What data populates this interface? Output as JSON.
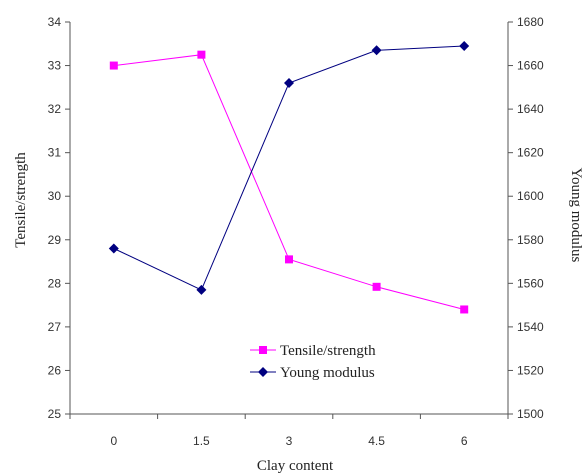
{
  "chart_data": {
    "type": "line",
    "x": [
      "0",
      "1.5",
      "3",
      "4.5",
      "6"
    ],
    "xlabel": "Clay content",
    "ylabel_left": "Tensile/strength",
    "ylabel_right": "Young modulus",
    "y_left": {
      "range": [
        25,
        34
      ],
      "ticks": [
        25,
        26,
        27,
        28,
        29,
        30,
        31,
        32,
        33,
        34
      ]
    },
    "y_right": {
      "range": [
        1500,
        1680
      ],
      "ticks": [
        1500,
        1520,
        1540,
        1560,
        1580,
        1600,
        1620,
        1640,
        1660,
        1680
      ]
    },
    "grid": false,
    "legend_position": "bottom-right",
    "series": [
      {
        "name": "Tensile/strength",
        "axis": "left",
        "marker": "square",
        "color": "#ff00ff",
        "values": [
          33.0,
          33.25,
          28.55,
          27.92,
          27.4
        ]
      },
      {
        "name": "Young modulus",
        "axis": "right",
        "marker": "diamond",
        "color": "#000080",
        "values": [
          1576,
          1557,
          1652,
          1667,
          1669
        ]
      }
    ]
  }
}
